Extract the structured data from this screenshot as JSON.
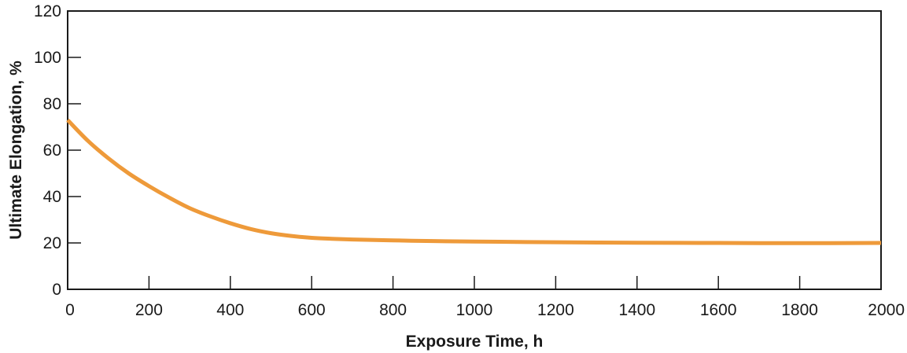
{
  "chart_data": {
    "type": "line",
    "xlabel": "Exposure Time, h",
    "ylabel": "Ultimate Elongation, %",
    "xlim": [
      0,
      2000
    ],
    "ylim": [
      0,
      120
    ],
    "x_ticks": [
      0,
      200,
      400,
      600,
      800,
      1000,
      1200,
      1400,
      1600,
      1800,
      2000
    ],
    "y_ticks": [
      0,
      20,
      40,
      60,
      80,
      100,
      120
    ],
    "grid": false,
    "legend": "none",
    "series": [
      {
        "color": "#ee9a3a",
        "x": [
          0,
          50,
          100,
          150,
          200,
          250,
          300,
          350,
          400,
          450,
          500,
          550,
          600,
          650,
          700,
          800,
          900,
          1000,
          1200,
          1400,
          1600,
          1800,
          2000
        ],
        "y": [
          73,
          64,
          56.5,
          50,
          44.5,
          39.5,
          35,
          31.5,
          28.5,
          26,
          24.2,
          23,
          22.2,
          21.8,
          21.5,
          21.1,
          20.8,
          20.6,
          20.3,
          20.1,
          20,
          19.9,
          20
        ]
      }
    ]
  }
}
